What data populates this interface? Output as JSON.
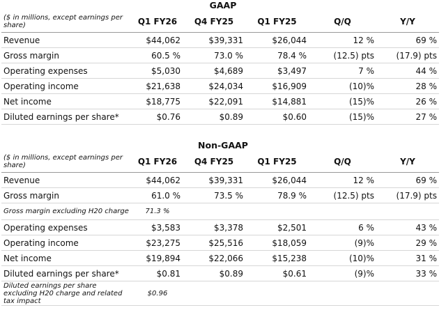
{
  "sections": [
    {
      "title": "GAAP",
      "header": {
        "note": "($ in millions, except earnings per share)",
        "columns": [
          "Q1 FY26",
          "Q4 FY25",
          "Q1 FY25",
          "Q/Q",
          "Y/Y"
        ]
      },
      "rows": [
        {
          "label": "Revenue",
          "values": [
            "$44,062",
            "$39,331",
            "$26,044",
            "12 %",
            "69 %"
          ]
        },
        {
          "label": "Gross margin",
          "values": [
            "60.5 %",
            "73.0 %",
            "78.4 %",
            "(12.5) pts",
            "(17.9) pts"
          ]
        },
        {
          "label": "Operating expenses",
          "values": [
            "$5,030",
            "$4,689",
            "$3,497",
            "7 %",
            "44 %"
          ]
        },
        {
          "label": "Operating income",
          "values": [
            "$21,638",
            "$24,034",
            "$16,909",
            "(10)%",
            "28 %"
          ]
        },
        {
          "label": "Net income",
          "values": [
            "$18,775",
            "$22,091",
            "$14,881",
            "(15)%",
            "26 %"
          ]
        },
        {
          "label": "Diluted earnings per share*",
          "values": [
            "$0.76",
            "$0.89",
            "$0.60",
            "(15)%",
            "27 %"
          ]
        }
      ]
    },
    {
      "title": "Non-GAAP",
      "header": {
        "note": "($ in millions, except earnings per share)",
        "columns": [
          "Q1 FY26",
          "Q4 FY25",
          "Q1 FY25",
          "Q/Q",
          "Y/Y"
        ]
      },
      "rows": [
        {
          "label": "Revenue",
          "values": [
            "$44,062",
            "$39,331",
            "$26,044",
            "12 %",
            "69 %"
          ]
        },
        {
          "label": "Gross margin",
          "values": [
            "61.0 %",
            "73.5 %",
            "78.9 %",
            "(12.5) pts",
            "(17.9) pts"
          ]
        },
        {
          "note": "Gross margin excluding H20 charge",
          "value": "71.3 %"
        },
        {
          "label": "Operating expenses",
          "values": [
            "$3,583",
            "$3,378",
            "$2,501",
            "6 %",
            "43 %"
          ]
        },
        {
          "label": "Operating income",
          "values": [
            "$23,275",
            "$25,516",
            "$18,059",
            "(9)%",
            "29 %"
          ]
        },
        {
          "label": "Net income",
          "values": [
            "$19,894",
            "$22,066",
            "$15,238",
            "(10)%",
            "31 %"
          ]
        },
        {
          "label": "Diluted earnings per share*",
          "values": [
            "$0.81",
            "$0.89",
            "$0.61",
            "(9)%",
            "33 %"
          ]
        },
        {
          "note": "Diluted earnings per share excluding H20 charge and related tax impact",
          "value": "$0.96"
        }
      ]
    }
  ]
}
